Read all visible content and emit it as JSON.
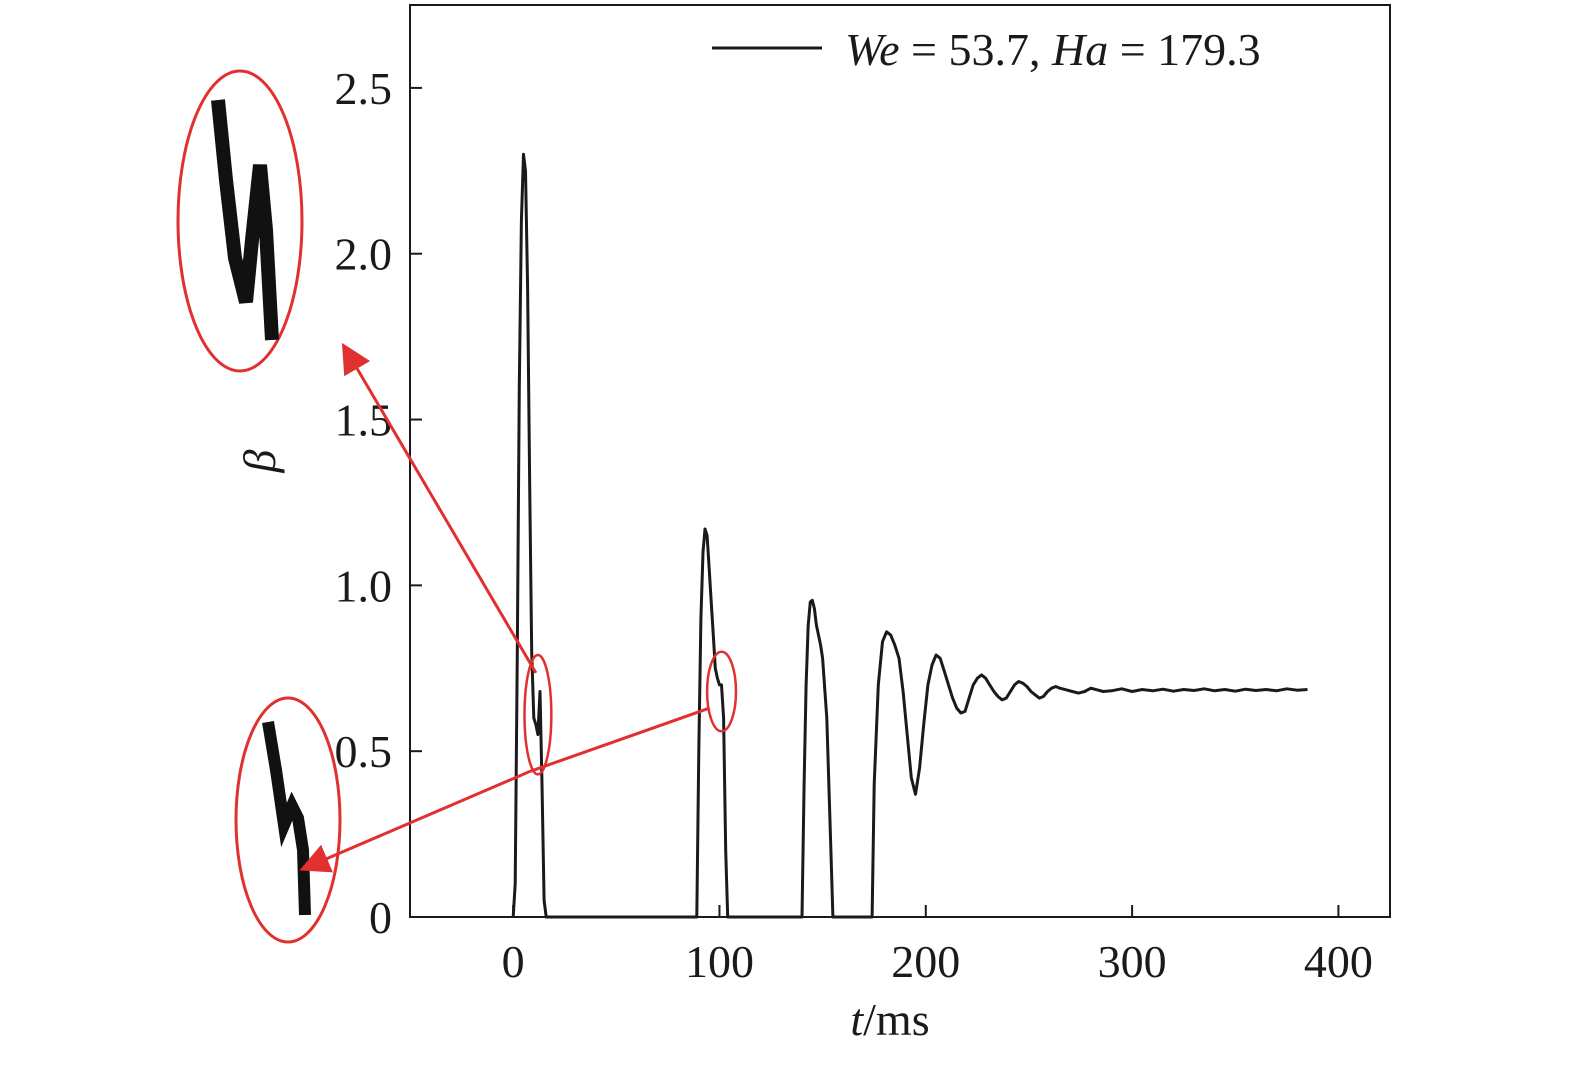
{
  "chart_data": {
    "type": "line",
    "title": "",
    "xlabel": {
      "var": "t",
      "unit": "/ms"
    },
    "ylabel": "β",
    "xlim": [
      -50,
      425
    ],
    "ylim": [
      0,
      2.75
    ],
    "x_ticks": [
      0,
      100,
      200,
      300,
      400
    ],
    "x_tick_labels": [
      "0",
      "100",
      "200",
      "300",
      "400"
    ],
    "y_ticks": [
      0,
      0.5,
      1.0,
      1.5,
      2.0,
      2.5
    ],
    "y_tick_labels": [
      "0",
      "0.5",
      "1.0",
      "1.5",
      "2.0",
      "2.5"
    ],
    "grid": false,
    "legend_position": "top-right",
    "series": [
      {
        "name_parts": [
          {
            "text": "We",
            "italic": true
          },
          {
            "text": " = 53.7, ",
            "italic": false
          },
          {
            "text": "Ha",
            "italic": true
          },
          {
            "text": " = 179.3",
            "italic": false
          }
        ],
        "color": "#1a1a1a",
        "points": [
          [
            0,
            0
          ],
          [
            1,
            0.1
          ],
          [
            2,
            0.8
          ],
          [
            3,
            1.6
          ],
          [
            4,
            2.1
          ],
          [
            5,
            2.3
          ],
          [
            6,
            2.25
          ],
          [
            7,
            1.9
          ],
          [
            8,
            1.3
          ],
          [
            9,
            0.8
          ],
          [
            10,
            0.6
          ],
          [
            11,
            0.58
          ],
          [
            12,
            0.55
          ],
          [
            13,
            0.68
          ],
          [
            14,
            0.4
          ],
          [
            15,
            0.05
          ],
          [
            16,
            0
          ],
          [
            89,
            0
          ],
          [
            90,
            0.5
          ],
          [
            91,
            0.9
          ],
          [
            92,
            1.1
          ],
          [
            93,
            1.17
          ],
          [
            94,
            1.15
          ],
          [
            95,
            1.05
          ],
          [
            96,
            0.95
          ],
          [
            97,
            0.85
          ],
          [
            98,
            0.75
          ],
          [
            99,
            0.72
          ],
          [
            100,
            0.7
          ],
          [
            101,
            0.7
          ],
          [
            102,
            0.6
          ],
          [
            103,
            0.2
          ],
          [
            104,
            0
          ],
          [
            140,
            0
          ],
          [
            141,
            0.4
          ],
          [
            142,
            0.7
          ],
          [
            143,
            0.88
          ],
          [
            144,
            0.95
          ],
          [
            145,
            0.955
          ],
          [
            146,
            0.93
          ],
          [
            147,
            0.88
          ],
          [
            148,
            0.85
          ],
          [
            149,
            0.82
          ],
          [
            150,
            0.78
          ],
          [
            152,
            0.6
          ],
          [
            154,
            0.2
          ],
          [
            155,
            0
          ],
          [
            174,
            0
          ],
          [
            175,
            0.4
          ],
          [
            177,
            0.7
          ],
          [
            179,
            0.83
          ],
          [
            181,
            0.86
          ],
          [
            183,
            0.85
          ],
          [
            185,
            0.82
          ],
          [
            187,
            0.78
          ],
          [
            189,
            0.68
          ],
          [
            191,
            0.55
          ],
          [
            193,
            0.42
          ],
          [
            195,
            0.37
          ],
          [
            197,
            0.45
          ],
          [
            199,
            0.58
          ],
          [
            201,
            0.7
          ],
          [
            203,
            0.76
          ],
          [
            205,
            0.79
          ],
          [
            207,
            0.78
          ],
          [
            209,
            0.74
          ],
          [
            211,
            0.7
          ],
          [
            213,
            0.66
          ],
          [
            215,
            0.63
          ],
          [
            217,
            0.615
          ],
          [
            219,
            0.62
          ],
          [
            221,
            0.66
          ],
          [
            223,
            0.7
          ],
          [
            225,
            0.72
          ],
          [
            227,
            0.73
          ],
          [
            229,
            0.72
          ],
          [
            231,
            0.7
          ],
          [
            233,
            0.68
          ],
          [
            235,
            0.665
          ],
          [
            237,
            0.655
          ],
          [
            239,
            0.66
          ],
          [
            241,
            0.68
          ],
          [
            243,
            0.7
          ],
          [
            245,
            0.71
          ],
          [
            247,
            0.705
          ],
          [
            249,
            0.695
          ],
          [
            251,
            0.68
          ],
          [
            253,
            0.67
          ],
          [
            255,
            0.66
          ],
          [
            257,
            0.665
          ],
          [
            259,
            0.68
          ],
          [
            261,
            0.69
          ],
          [
            263,
            0.695
          ],
          [
            265,
            0.69
          ],
          [
            268,
            0.685
          ],
          [
            271,
            0.68
          ],
          [
            274,
            0.675
          ],
          [
            277,
            0.68
          ],
          [
            280,
            0.69
          ],
          [
            283,
            0.685
          ],
          [
            286,
            0.68
          ],
          [
            290,
            0.682
          ],
          [
            295,
            0.688
          ],
          [
            300,
            0.68
          ],
          [
            305,
            0.686
          ],
          [
            310,
            0.682
          ],
          [
            315,
            0.687
          ],
          [
            320,
            0.681
          ],
          [
            325,
            0.686
          ],
          [
            330,
            0.683
          ],
          [
            335,
            0.688
          ],
          [
            340,
            0.682
          ],
          [
            345,
            0.686
          ],
          [
            350,
            0.681
          ],
          [
            355,
            0.687
          ],
          [
            360,
            0.683
          ],
          [
            365,
            0.686
          ],
          [
            370,
            0.682
          ],
          [
            375,
            0.688
          ],
          [
            380,
            0.684
          ],
          [
            385,
            0.686
          ]
        ]
      }
    ],
    "annotations": {
      "color": "#e03030",
      "highlighted_regions": [
        {
          "x": 12,
          "y": 0.61,
          "rx": 6.5,
          "ry": 0.18,
          "zoom": "upper",
          "arrow_head": "upper"
        },
        {
          "x": 101,
          "y": 0.68,
          "rx": 7,
          "ry": 0.12,
          "zoom": "lower",
          "arrow_head": "lower"
        }
      ]
    }
  }
}
